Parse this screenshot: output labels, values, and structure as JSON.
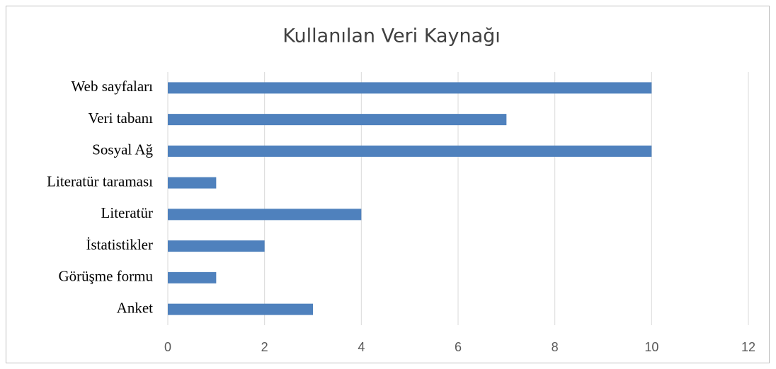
{
  "chart_data": {
    "type": "hbar",
    "title": "Kullanılan Veri Kaynağı",
    "categories": [
      "Web sayfaları",
      "Veri tabanı",
      "Sosyal Ağ",
      "Literatür taraması",
      "Literatür",
      "İstatistikler",
      "Görüşme formu",
      "Anket"
    ],
    "values": [
      10,
      7,
      10,
      1,
      4,
      2,
      1,
      3
    ],
    "color": "#4f81bd",
    "xlim": [
      0,
      12
    ],
    "xticks": [
      0,
      2,
      4,
      6,
      8,
      10,
      12
    ],
    "grid": true
  }
}
